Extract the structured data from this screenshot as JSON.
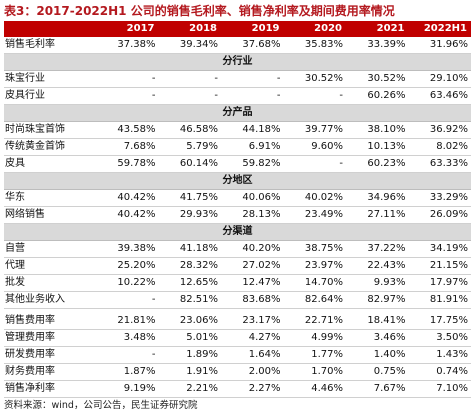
{
  "title": "表3：2017-2022H1 公司的销售毛利率、销售净利率及期间费用率情况",
  "header": {
    "blank": "",
    "years": [
      "2017",
      "2018",
      "2019",
      "2020",
      "2021",
      "2022H1"
    ]
  },
  "rows": [
    {
      "type": "data",
      "label": "销售毛利率",
      "values": [
        "37.38%",
        "39.34%",
        "37.68%",
        "35.83%",
        "33.39%",
        "31.96%"
      ]
    },
    {
      "type": "section",
      "label": "分行业"
    },
    {
      "type": "data",
      "label": "珠宝行业",
      "values": [
        "-",
        "-",
        "-",
        "30.52%",
        "30.52%",
        "29.10%"
      ]
    },
    {
      "type": "data",
      "label": "皮具行业",
      "values": [
        "-",
        "-",
        "-",
        "-",
        "60.26%",
        "63.46%"
      ]
    },
    {
      "type": "section",
      "label": "分产品"
    },
    {
      "type": "data",
      "label": "时尚珠宝首饰",
      "values": [
        "43.58%",
        "46.58%",
        "44.18%",
        "39.77%",
        "38.10%",
        "36.92%"
      ]
    },
    {
      "type": "data",
      "label": "传统黄金首饰",
      "values": [
        "7.68%",
        "5.79%",
        "6.91%",
        "9.60%",
        "10.13%",
        "8.02%"
      ]
    },
    {
      "type": "data",
      "label": "皮具",
      "values": [
        "59.78%",
        "60.14%",
        "59.82%",
        "-",
        "60.23%",
        "63.33%"
      ]
    },
    {
      "type": "section",
      "label": "分地区"
    },
    {
      "type": "data",
      "label": "华东",
      "values": [
        "40.42%",
        "41.75%",
        "40.06%",
        "40.02%",
        "34.96%",
        "33.29%"
      ]
    },
    {
      "type": "data",
      "label": "网络销售",
      "values": [
        "40.42%",
        "29.93%",
        "28.13%",
        "23.49%",
        "27.11%",
        "26.09%"
      ]
    },
    {
      "type": "section",
      "label": "分渠道"
    },
    {
      "type": "data",
      "label": "自营",
      "values": [
        "39.38%",
        "41.18%",
        "40.20%",
        "38.75%",
        "37.22%",
        "34.19%"
      ]
    },
    {
      "type": "data",
      "label": "代理",
      "values": [
        "25.20%",
        "28.32%",
        "27.02%",
        "23.97%",
        "22.43%",
        "21.15%"
      ]
    },
    {
      "type": "data",
      "label": "批发",
      "values": [
        "10.22%",
        "12.65%",
        "12.47%",
        "14.70%",
        "9.93%",
        "17.97%"
      ]
    },
    {
      "type": "data",
      "label": "其他业务收入",
      "values": [
        "-",
        "82.51%",
        "83.68%",
        "82.64%",
        "82.97%",
        "81.91%"
      ]
    },
    {
      "type": "spacer"
    },
    {
      "type": "data",
      "label": "销售费用率",
      "values": [
        "21.81%",
        "23.06%",
        "23.17%",
        "22.71%",
        "18.41%",
        "17.75%"
      ]
    },
    {
      "type": "data",
      "label": "管理费用率",
      "values": [
        "3.48%",
        "5.01%",
        "4.27%",
        "4.99%",
        "3.46%",
        "3.50%"
      ]
    },
    {
      "type": "data",
      "label": "研发费用率",
      "values": [
        "-",
        "1.89%",
        "1.64%",
        "1.77%",
        "1.40%",
        "1.43%"
      ]
    },
    {
      "type": "data",
      "label": "财务费用率",
      "values": [
        "1.87%",
        "1.91%",
        "2.00%",
        "1.70%",
        "0.75%",
        "0.74%"
      ]
    },
    {
      "type": "data",
      "label": "销售净利率",
      "values": [
        "9.19%",
        "2.21%",
        "2.27%",
        "4.46%",
        "7.67%",
        "7.10%"
      ]
    }
  ],
  "source": "资料来源：wind，公司公告，民生证券研究院"
}
